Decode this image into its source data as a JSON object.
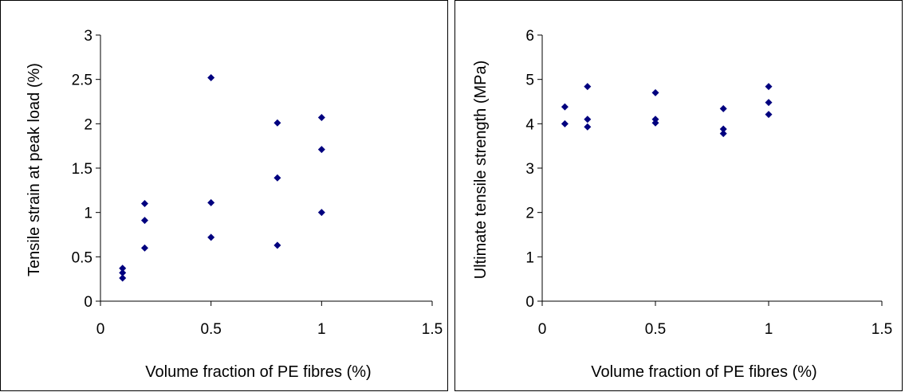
{
  "chart_data": [
    {
      "type": "scatter",
      "title": "",
      "xlabel": "Volume fraction of PE fibres (%)",
      "ylabel": "Tensile strain at peak load (%)",
      "xlim": [
        0,
        1.5
      ],
      "ylim": [
        0,
        3
      ],
      "xticks": [
        0,
        0.5,
        1,
        1.5
      ],
      "xtick_labels": [
        "0",
        "0.5",
        "1",
        "1.5"
      ],
      "yticks": [
        0,
        0.5,
        1,
        1.5,
        2,
        2.5,
        3
      ],
      "ytick_labels": [
        "0",
        "0.5",
        "1",
        "1.5",
        "2",
        "2.5",
        "3"
      ],
      "grid": false,
      "marker": "diamond",
      "color": "#00007f",
      "x": [
        0.1,
        0.1,
        0.1,
        0.2,
        0.2,
        0.2,
        0.5,
        0.5,
        0.5,
        0.8,
        0.8,
        0.8,
        1.0,
        1.0,
        1.0
      ],
      "y": [
        0.37,
        0.32,
        0.26,
        1.1,
        0.91,
        0.6,
        2.52,
        1.11,
        0.72,
        2.01,
        1.39,
        0.63,
        2.07,
        1.71,
        1.0
      ]
    },
    {
      "type": "scatter",
      "title": "",
      "xlabel": "Volume fraction of PE fibres (%)",
      "ylabel": "Ultimate tensile strength (MPa)",
      "xlim": [
        0,
        1.5
      ],
      "ylim": [
        0,
        6
      ],
      "xticks": [
        0,
        0.5,
        1,
        1.5
      ],
      "xtick_labels": [
        "0",
        "0.5",
        "1",
        "1.5"
      ],
      "yticks": [
        0,
        1,
        2,
        3,
        4,
        5,
        6
      ],
      "ytick_labels": [
        "0",
        "1",
        "2",
        "3",
        "4",
        "5",
        "6"
      ],
      "grid": false,
      "marker": "diamond",
      "color": "#00007f",
      "x": [
        0.1,
        0.1,
        0.2,
        0.2,
        0.2,
        0.5,
        0.5,
        0.5,
        0.8,
        0.8,
        0.8,
        1.0,
        1.0,
        1.0
      ],
      "y": [
        4.38,
        4.0,
        4.84,
        4.1,
        3.93,
        4.7,
        4.1,
        4.02,
        4.34,
        3.88,
        3.78,
        4.84,
        4.48,
        4.21
      ]
    }
  ]
}
